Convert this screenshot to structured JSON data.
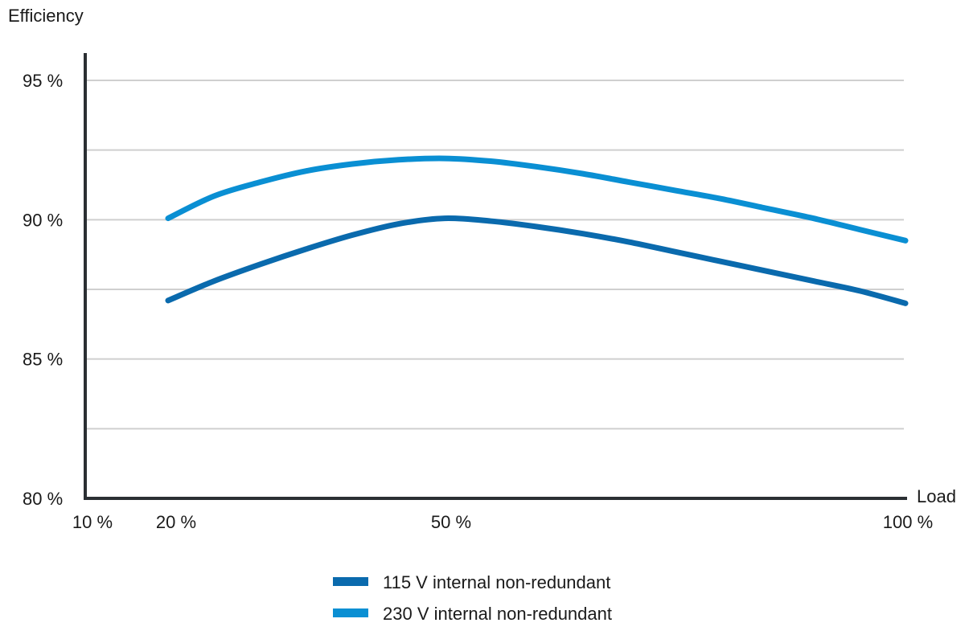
{
  "chart_data": {
    "type": "line",
    "ylabel": "Efficiency",
    "xlabel": "Load",
    "xlim": [
      10,
      100
    ],
    "ylim": [
      80,
      96
    ],
    "grid": true,
    "x_ticks": [
      {
        "value": 10,
        "label": "10 %"
      },
      {
        "value": 20,
        "label": "20 %"
      },
      {
        "value": 50,
        "label": "50 %"
      },
      {
        "value": 100,
        "label": "100 %"
      }
    ],
    "y_ticks": [
      {
        "value": 80,
        "label": "80 %"
      },
      {
        "value": 85,
        "label": "85 %"
      },
      {
        "value": 90,
        "label": "90 %"
      },
      {
        "value": 95,
        "label": "95 %"
      }
    ],
    "y_gridlines": [
      82.5,
      85,
      87.5,
      90,
      92.5,
      95
    ],
    "legend_position": "bottom-center",
    "series": [
      {
        "name": "115 V internal non-redundant",
        "color": "#0a6aad",
        "x": [
          20,
          25,
          30,
          35,
          40,
          45,
          50,
          55,
          60,
          65,
          70,
          75,
          80,
          85,
          90,
          95,
          100
        ],
        "y": [
          87.1,
          87.8,
          88.4,
          88.95,
          89.45,
          89.85,
          90.05,
          89.95,
          89.75,
          89.5,
          89.2,
          88.85,
          88.5,
          88.15,
          87.8,
          87.45,
          87.0
        ]
      },
      {
        "name": "230 V internal non-redundant",
        "color": "#0a8fd3",
        "x": [
          20,
          25,
          30,
          35,
          40,
          45,
          50,
          55,
          60,
          65,
          70,
          75,
          80,
          85,
          90,
          95,
          100
        ],
        "y": [
          90.05,
          90.85,
          91.35,
          91.75,
          92.0,
          92.15,
          92.2,
          92.1,
          91.9,
          91.65,
          91.35,
          91.05,
          90.75,
          90.4,
          90.05,
          89.65,
          89.25
        ]
      }
    ]
  }
}
